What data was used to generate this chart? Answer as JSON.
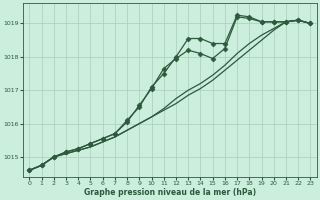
{
  "xlabel": "Graphe pression niveau de la mer (hPa)",
  "background_color": "#cceedd",
  "grid_color": "#aaccbb",
  "line_color": "#2d5a3d",
  "ylim": [
    1014.4,
    1019.6
  ],
  "xlim": [
    -0.5,
    23.5
  ],
  "yticks": [
    1015,
    1016,
    1017,
    1018,
    1019
  ],
  "xticks": [
    0,
    1,
    2,
    3,
    4,
    5,
    6,
    7,
    8,
    9,
    10,
    11,
    12,
    13,
    14,
    15,
    16,
    17,
    18,
    19,
    20,
    21,
    22,
    23
  ],
  "series": [
    [
      1014.6,
      1014.75,
      1015.0,
      1015.15,
      1015.25,
      1015.4,
      1015.55,
      1015.7,
      1016.05,
      1016.55,
      1017.05,
      1017.65,
      1017.95,
      1018.2,
      1018.1,
      1017.95,
      1018.25,
      1019.2,
      1019.15,
      1019.05,
      1019.05,
      1019.05,
      1019.1,
      1019.0
    ],
    [
      1014.6,
      1014.75,
      1015.0,
      1015.15,
      1015.25,
      1015.4,
      1015.55,
      1015.7,
      1016.1,
      1016.5,
      1017.1,
      1017.5,
      1018.0,
      1018.55,
      1018.55,
      1018.4,
      1018.4,
      1019.25,
      1019.2,
      1019.05,
      1019.05,
      1019.05,
      1019.1,
      1019.0
    ],
    [
      1014.6,
      1014.75,
      1015.0,
      1015.1,
      1015.2,
      1015.3,
      1015.45,
      1015.6,
      1015.8,
      1016.0,
      1016.2,
      1016.45,
      1016.75,
      1017.0,
      1017.2,
      1017.45,
      1017.75,
      1018.1,
      1018.4,
      1018.65,
      1018.85,
      1019.05,
      1019.1,
      1019.0
    ],
    [
      1014.6,
      1014.75,
      1015.0,
      1015.1,
      1015.2,
      1015.3,
      1015.45,
      1015.6,
      1015.8,
      1016.0,
      1016.2,
      1016.4,
      1016.6,
      1016.85,
      1017.05,
      1017.3,
      1017.6,
      1017.9,
      1018.2,
      1018.5,
      1018.8,
      1019.05,
      1019.1,
      1019.0
    ]
  ],
  "marker_series": [
    0,
    1
  ],
  "marker": "D",
  "markersize": 2.5,
  "linewidth": 0.9
}
